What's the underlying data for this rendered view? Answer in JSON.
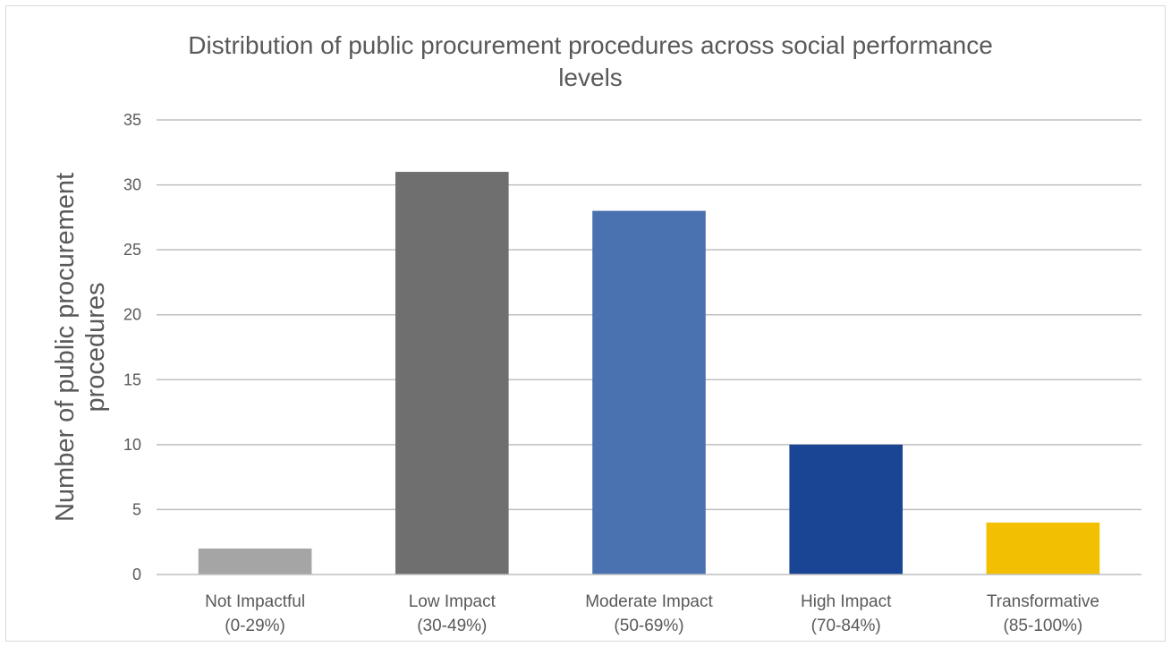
{
  "chart_data": {
    "type": "bar",
    "title_lines": [
      "Distribution of public procurement procedures across social performance",
      "levels"
    ],
    "ylabel_lines": [
      "Number of public procurement",
      "procedures"
    ],
    "xlabel": "",
    "categories": [
      {
        "line1": "Not Impactful",
        "line2": "(0-29%)"
      },
      {
        "line1": "Low Impact",
        "line2": "(30-49%)"
      },
      {
        "line1": "Moderate Impact",
        "line2": "(50-69%)"
      },
      {
        "line1": "High Impact",
        "line2": "(70-84%)"
      },
      {
        "line1": "Transformative",
        "line2": "(85-100%)"
      }
    ],
    "values": [
      2,
      31,
      28,
      10,
      4
    ],
    "colors": [
      "#a5a5a5",
      "#6f6f6f",
      "#4a72b0",
      "#1a4494",
      "#f2c000"
    ],
    "ylim": [
      0,
      35
    ],
    "yticks": [
      0,
      5,
      10,
      15,
      20,
      25,
      30,
      35
    ],
    "grid": true,
    "legend": "none"
  }
}
